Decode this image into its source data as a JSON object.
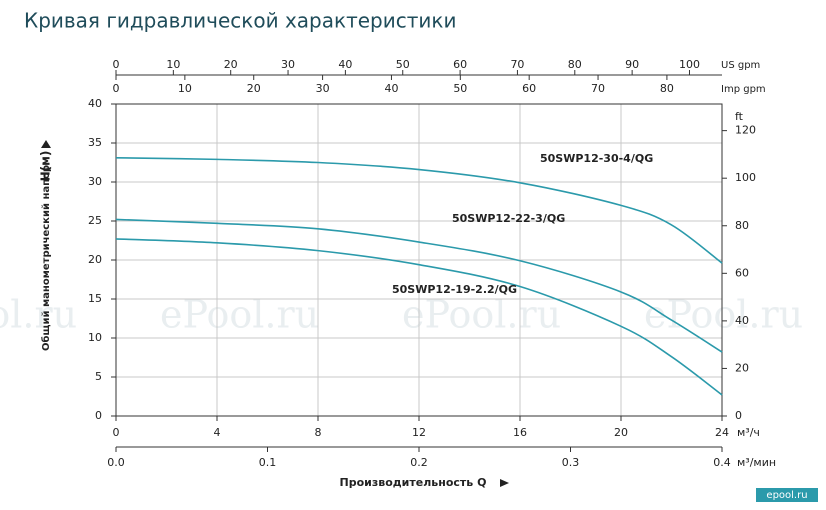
{
  "chart_data": {
    "type": "line",
    "title": "Кривая гидравлической характеристики",
    "y_label": "Общий манометрический напор",
    "y_symbol": "H(м)",
    "x_label": "Производительность Q",
    "x_unit": "м³/ч",
    "x": [
      0,
      4,
      8,
      12,
      16,
      20,
      22,
      24
    ],
    "xlim": [
      0,
      24
    ],
    "xticks": [
      0,
      4,
      8,
      12,
      16,
      20,
      24
    ],
    "x_min_axis": {
      "unit": "м³/мин",
      "lim": [
        0,
        0.4
      ],
      "ticks": [
        {
          "value": 0,
          "label": "0.0"
        },
        0.1,
        0.2,
        0.3,
        0.4
      ]
    },
    "top_axes": [
      {
        "unit": "US gpm",
        "lim": [
          0,
          105.67
        ],
        "ticks": [
          0,
          10,
          20,
          30,
          40,
          50,
          60,
          70,
          80,
          90,
          100
        ]
      },
      {
        "unit": "Imp gpm",
        "lim": [
          0,
          88
        ],
        "ticks": [
          0,
          10,
          20,
          30,
          40,
          50,
          60,
          70,
          80
        ]
      }
    ],
    "ylim": [
      0,
      40
    ],
    "yticks": [
      0,
      5,
      10,
      15,
      20,
      25,
      30,
      35,
      40
    ],
    "y2_unit": "ft",
    "y2lim": [
      0,
      131.2
    ],
    "y2ticks": [
      0,
      20,
      40,
      60,
      80,
      100,
      120
    ],
    "grid": true,
    "series": [
      {
        "name": "50SWP12-30-4/QG",
        "color": "#2b9aab",
        "values": [
          33.1,
          32.9,
          32.5,
          31.6,
          29.9,
          27.0,
          24.5,
          19.6
        ]
      },
      {
        "name": "50SWP12-22-3/QG",
        "color": "#2b9aab",
        "values": [
          25.2,
          24.7,
          24.0,
          22.3,
          19.9,
          15.9,
          12.3,
          8.2
        ]
      },
      {
        "name": "50SWP12-19-2.2/QG",
        "color": "#2b9aab",
        "values": [
          22.7,
          22.2,
          21.2,
          19.4,
          16.6,
          11.5,
          7.6,
          2.7
        ]
      }
    ],
    "watermark": "ePool.ru",
    "logo": "epool.ru"
  }
}
